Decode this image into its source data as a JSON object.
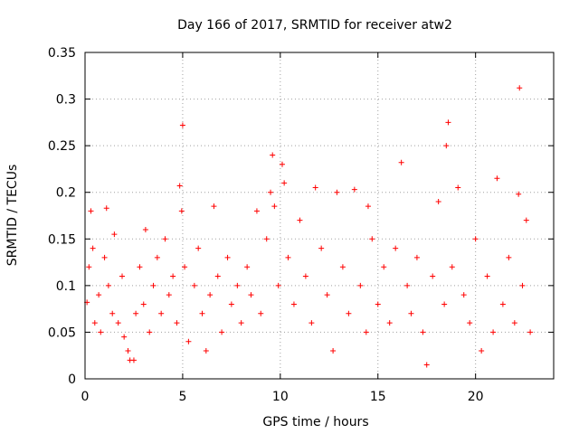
{
  "chart_data": {
    "type": "scatter",
    "title": "Day 166 of 2017, SRMTID for receiver atw2",
    "xlabel": "GPS time / hours",
    "ylabel": "SRMTID / TECUs",
    "xlim": [
      0,
      24
    ],
    "ylim": [
      0,
      0.35
    ],
    "x_ticks": [
      0,
      5,
      10,
      15,
      20
    ],
    "x_tick_labels": [
      "0",
      "5",
      "10",
      "15",
      "20"
    ],
    "y_ticks": [
      0,
      0.05,
      0.1,
      0.15,
      0.2,
      0.25,
      0.3,
      0.35
    ],
    "y_tick_labels": [
      "0",
      "0.05",
      "0.1",
      "0.15",
      "0.2",
      "0.25",
      "0.3",
      "0.35"
    ],
    "grid": true,
    "marker": "plus",
    "color": "#ff0000",
    "series": [
      {
        "points": [
          [
            0.1,
            0.082
          ],
          [
            0.2,
            0.12
          ],
          [
            0.3,
            0.18
          ],
          [
            0.4,
            0.14
          ],
          [
            0.5,
            0.06
          ],
          [
            0.7,
            0.09
          ],
          [
            0.8,
            0.05
          ],
          [
            1.0,
            0.13
          ],
          [
            1.1,
            0.183
          ],
          [
            1.2,
            0.1
          ],
          [
            1.4,
            0.07
          ],
          [
            1.5,
            0.155
          ],
          [
            1.7,
            0.06
          ],
          [
            1.9,
            0.11
          ],
          [
            2.0,
            0.045
          ],
          [
            2.2,
            0.03
          ],
          [
            2.3,
            0.02
          ],
          [
            2.5,
            0.02
          ],
          [
            2.6,
            0.07
          ],
          [
            2.8,
            0.12
          ],
          [
            3.0,
            0.08
          ],
          [
            3.1,
            0.16
          ],
          [
            3.3,
            0.05
          ],
          [
            3.5,
            0.1
          ],
          [
            3.7,
            0.13
          ],
          [
            3.9,
            0.07
          ],
          [
            4.1,
            0.15
          ],
          [
            4.3,
            0.09
          ],
          [
            4.5,
            0.11
          ],
          [
            4.7,
            0.06
          ],
          [
            4.85,
            0.207
          ],
          [
            4.95,
            0.18
          ],
          [
            5.0,
            0.272
          ],
          [
            5.1,
            0.12
          ],
          [
            5.3,
            0.04
          ],
          [
            5.6,
            0.1
          ],
          [
            5.8,
            0.14
          ],
          [
            6.0,
            0.07
          ],
          [
            6.2,
            0.03
          ],
          [
            6.4,
            0.09
          ],
          [
            6.6,
            0.185
          ],
          [
            6.8,
            0.11
          ],
          [
            7.0,
            0.05
          ],
          [
            7.3,
            0.13
          ],
          [
            7.5,
            0.08
          ],
          [
            7.8,
            0.1
          ],
          [
            8.0,
            0.06
          ],
          [
            8.3,
            0.12
          ],
          [
            8.5,
            0.09
          ],
          [
            8.8,
            0.18
          ],
          [
            9.0,
            0.07
          ],
          [
            9.3,
            0.15
          ],
          [
            9.5,
            0.2
          ],
          [
            9.6,
            0.24
          ],
          [
            9.7,
            0.185
          ],
          [
            9.9,
            0.1
          ],
          [
            10.1,
            0.23
          ],
          [
            10.2,
            0.21
          ],
          [
            10.4,
            0.13
          ],
          [
            10.7,
            0.08
          ],
          [
            11.0,
            0.17
          ],
          [
            11.3,
            0.11
          ],
          [
            11.6,
            0.06
          ],
          [
            11.8,
            0.205
          ],
          [
            12.1,
            0.14
          ],
          [
            12.4,
            0.09
          ],
          [
            12.7,
            0.03
          ],
          [
            12.9,
            0.2
          ],
          [
            13.2,
            0.12
          ],
          [
            13.5,
            0.07
          ],
          [
            13.8,
            0.203
          ],
          [
            14.1,
            0.1
          ],
          [
            14.4,
            0.05
          ],
          [
            14.5,
            0.185
          ],
          [
            14.7,
            0.15
          ],
          [
            15.0,
            0.08
          ],
          [
            15.3,
            0.12
          ],
          [
            15.6,
            0.06
          ],
          [
            15.9,
            0.14
          ],
          [
            16.2,
            0.232
          ],
          [
            16.5,
            0.1
          ],
          [
            16.7,
            0.07
          ],
          [
            17.0,
            0.13
          ],
          [
            17.3,
            0.05
          ],
          [
            17.5,
            0.015
          ],
          [
            17.8,
            0.11
          ],
          [
            18.1,
            0.19
          ],
          [
            18.4,
            0.08
          ],
          [
            18.5,
            0.25
          ],
          [
            18.6,
            0.275
          ],
          [
            18.8,
            0.12
          ],
          [
            19.1,
            0.205
          ],
          [
            19.4,
            0.09
          ],
          [
            19.7,
            0.06
          ],
          [
            20.0,
            0.15
          ],
          [
            20.3,
            0.03
          ],
          [
            20.6,
            0.11
          ],
          [
            20.9,
            0.05
          ],
          [
            21.1,
            0.215
          ],
          [
            21.4,
            0.08
          ],
          [
            21.7,
            0.13
          ],
          [
            22.0,
            0.06
          ],
          [
            22.2,
            0.198
          ],
          [
            22.25,
            0.312
          ],
          [
            22.4,
            0.1
          ],
          [
            22.6,
            0.17
          ],
          [
            22.8,
            0.05
          ]
        ]
      }
    ]
  }
}
